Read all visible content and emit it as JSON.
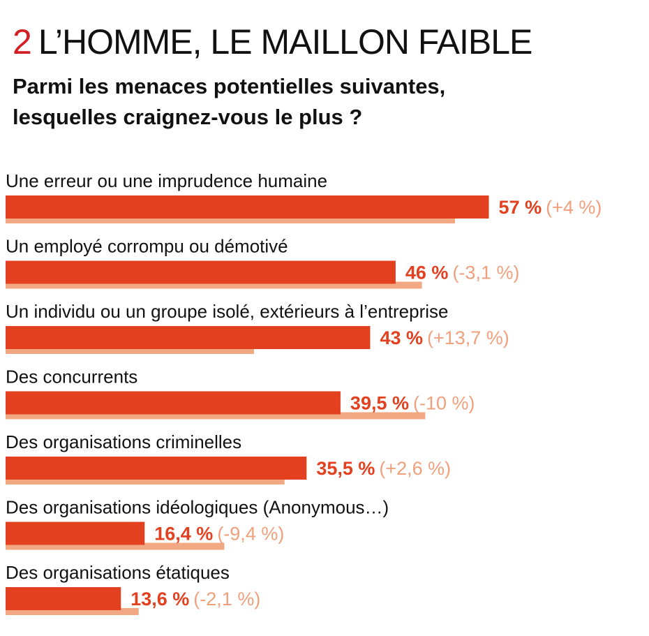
{
  "header": {
    "number": "2",
    "title": "L’HOMME, LE MAILLON FAIBLE",
    "question_line1": "Parmi les menaces potentielles suivantes,",
    "question_line2": "lesquelles craignez-vous le plus ?"
  },
  "colors": {
    "accent_red": "#d21f26",
    "bar_current": "#e2401f",
    "bar_previous": "#f2a882",
    "change_text": "#f0a07c",
    "value_text": "#e2401f"
  },
  "chart_data": {
    "type": "bar",
    "orientation": "horizontal",
    "title": "L’HOMME, LE MAILLON FAIBLE",
    "subtitle": "Parmi les menaces potentielles suivantes, lesquelles craignez-vous le plus ?",
    "categories": [
      "Une erreur ou une imprudence humaine",
      "Un employé corrompu ou démotivé",
      "Un individu ou un groupe isolé, extérieurs à l’entreprise",
      "Des concurrents",
      "Des organisations criminelles",
      "Des organisations idéologiques (Anonymous…)",
      "Des organisations étatiques"
    ],
    "series": [
      {
        "values": [
          57,
          46,
          43,
          39.5,
          35.5,
          16.4,
          13.6
        ]
      },
      {
        "values": [
          53,
          49.1,
          29.3,
          49.5,
          32.9,
          25.8,
          15.7
        ]
      }
    ],
    "value_labels": [
      "57 %",
      "46 %",
      "43 %",
      "39,5 %",
      "35,5 %",
      "16,4 %",
      "13,6 %"
    ],
    "change_labels": [
      "(+4 %)",
      "(-3,1 %)",
      "(+13,7 %)",
      "(-10 %)",
      "(+2,6 %)",
      "(-9,4 %)",
      "(-2,1 %)"
    ],
    "xlim": [
      0,
      75
    ],
    "grid": false,
    "legend": "none"
  }
}
